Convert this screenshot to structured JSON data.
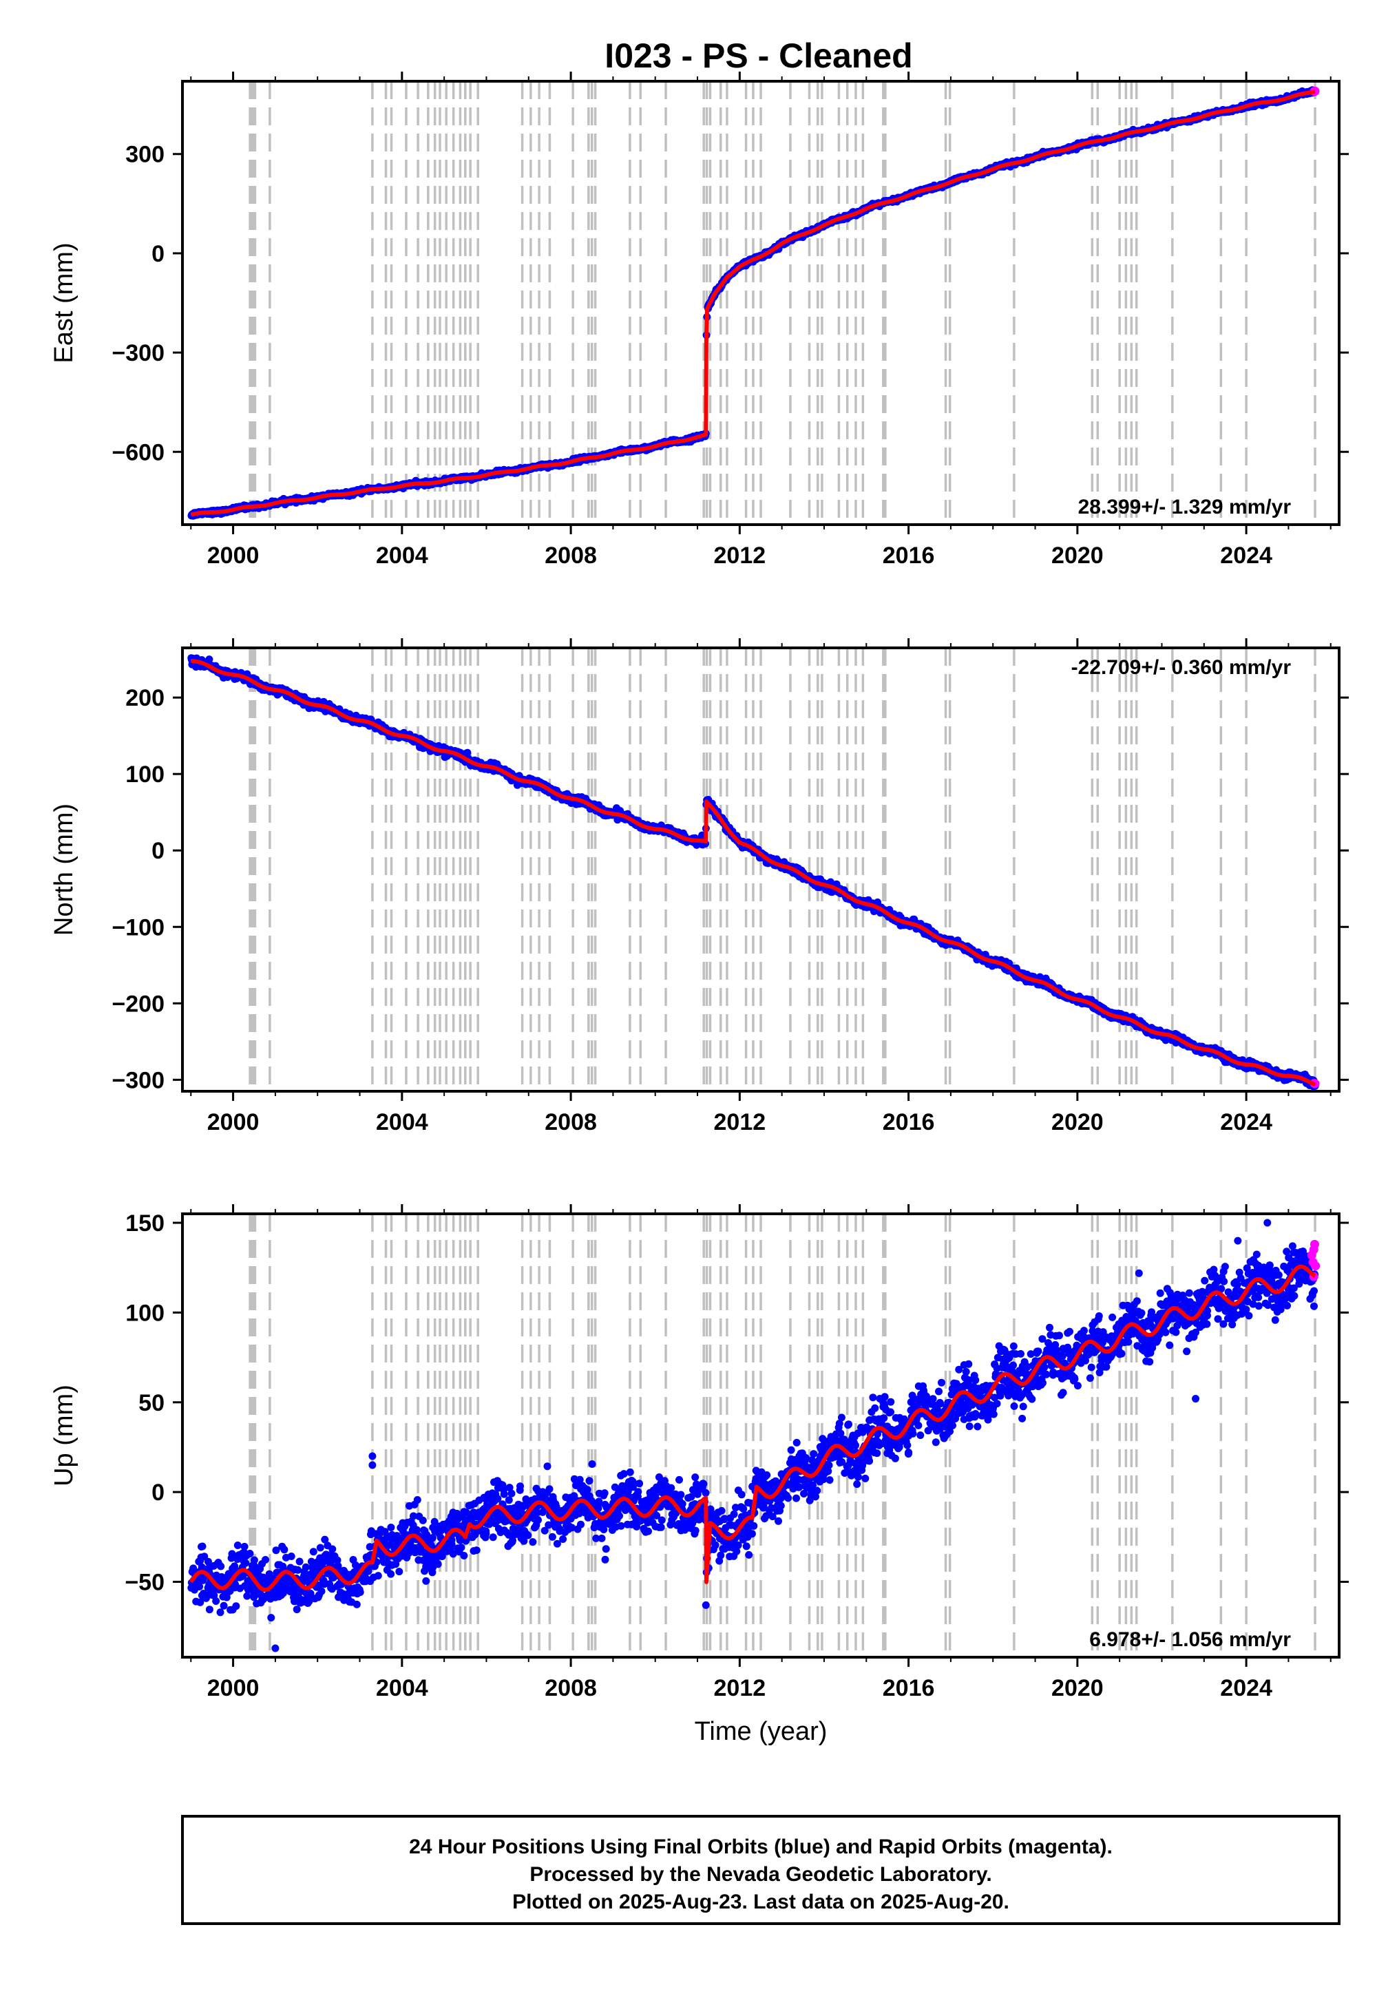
{
  "title": "I023  - PS - Cleaned",
  "caption_lines": [
    "24 Hour Positions Using Final Orbits (blue) and Rapid Orbits (magenta).",
    "Processed by the Nevada Geodetic Laboratory.",
    "Plotted on 2025-Aug-23. Last data on 2025-Aug-20."
  ],
  "colors": {
    "final_orbits": "#0000ff",
    "rapid_orbits": "#ff00ff",
    "model": "#ff0000",
    "event_lines": "#c0c0c0"
  },
  "chart_data": [
    {
      "type": "scatter",
      "name": "East",
      "ylabel": "East (mm)",
      "xlabel": "",
      "xlim": [
        1998.8,
        2026.2
      ],
      "ylim": [
        -820,
        520
      ],
      "x_ticks": [
        2000,
        2004,
        2008,
        2012,
        2016,
        2020,
        2024
      ],
      "y_ticks": [
        -600,
        -300,
        0,
        300
      ],
      "rate_label": "28.399+/- 1.329 mm/yr",
      "rate_position": "bottom-right",
      "rate_mm_per_yr": 28.399,
      "seasonal_amplitude": 2,
      "scatter_noise": 3,
      "model": [
        [
          1999.0,
          -790
        ],
        [
          2000.0,
          -775
        ],
        [
          2001.0,
          -755
        ],
        [
          2002.0,
          -738
        ],
        [
          2003.0,
          -720
        ],
        [
          2004.0,
          -703
        ],
        [
          2005.0,
          -688
        ],
        [
          2006.0,
          -670
        ],
        [
          2007.0,
          -650
        ],
        [
          2008.0,
          -630
        ],
        [
          2009.0,
          -605
        ],
        [
          2010.0,
          -583
        ],
        [
          2011.2,
          -550
        ],
        [
          2011.21,
          -260
        ],
        [
          2011.23,
          -170
        ],
        [
          2011.4,
          -125
        ],
        [
          2011.7,
          -70
        ],
        [
          2012.0,
          -40
        ],
        [
          2012.5,
          -10
        ],
        [
          2013.0,
          30
        ],
        [
          2014.0,
          85
        ],
        [
          2015.0,
          135
        ],
        [
          2016.0,
          175
        ],
        [
          2017.0,
          215
        ],
        [
          2018.0,
          255
        ],
        [
          2019.0,
          290
        ],
        [
          2020.0,
          325
        ],
        [
          2021.0,
          355
        ],
        [
          2022.0,
          385
        ],
        [
          2023.0,
          415
        ],
        [
          2024.0,
          445
        ],
        [
          2025.0,
          470
        ],
        [
          2025.63,
          490
        ]
      ]
    },
    {
      "type": "scatter",
      "name": "North",
      "ylabel": "North (mm)",
      "xlabel": "",
      "xlim": [
        1998.8,
        2026.2
      ],
      "ylim": [
        -315,
        265
      ],
      "x_ticks": [
        2000,
        2004,
        2008,
        2012,
        2016,
        2020,
        2024
      ],
      "y_ticks": [
        -300,
        -200,
        -100,
        0,
        100,
        200
      ],
      "rate_label": "-22.709+/- 0.360 mm/yr",
      "rate_position": "top-right",
      "rate_mm_per_yr": -22.709,
      "seasonal_amplitude": 2,
      "scatter_noise": 2.5,
      "model": [
        [
          1999.0,
          248
        ],
        [
          2000.0,
          230
        ],
        [
          2001.0,
          210
        ],
        [
          2002.0,
          190
        ],
        [
          2003.0,
          170
        ],
        [
          2004.0,
          150
        ],
        [
          2005.0,
          130
        ],
        [
          2006.0,
          110
        ],
        [
          2007.0,
          90
        ],
        [
          2008.0,
          68
        ],
        [
          2009.0,
          48
        ],
        [
          2010.0,
          28
        ],
        [
          2011.2,
          10
        ],
        [
          2011.21,
          62
        ],
        [
          2011.5,
          45
        ],
        [
          2012.0,
          10
        ],
        [
          2013.0,
          -20
        ],
        [
          2014.0,
          -45
        ],
        [
          2015.0,
          -70
        ],
        [
          2016.0,
          -95
        ],
        [
          2017.0,
          -120
        ],
        [
          2018.0,
          -145
        ],
        [
          2019.0,
          -170
        ],
        [
          2020.0,
          -195
        ],
        [
          2021.0,
          -218
        ],
        [
          2022.0,
          -240
        ],
        [
          2023.0,
          -260
        ],
        [
          2024.0,
          -280
        ],
        [
          2025.0,
          -295
        ],
        [
          2025.63,
          -305
        ]
      ]
    },
    {
      "type": "scatter",
      "name": "Up",
      "ylabel": "Up (mm)",
      "xlabel": "Time (year)",
      "xlim": [
        1998.8,
        2026.2
      ],
      "ylim": [
        -92,
        155
      ],
      "x_ticks": [
        2000,
        2004,
        2008,
        2012,
        2016,
        2020,
        2024
      ],
      "y_ticks": [
        -50,
        0,
        50,
        100,
        150
      ],
      "rate_label": "6.978+/- 1.056 mm/yr",
      "rate_position": "bottom-right",
      "rate_mm_per_yr": 6.978,
      "seasonal_amplitude": 5,
      "scatter_noise": 7,
      "model": [
        [
          1999.0,
          -50
        ],
        [
          2000.0,
          -48
        ],
        [
          2001.0,
          -50
        ],
        [
          2002.0,
          -48
        ],
        [
          2003.0,
          -45
        ],
        [
          2003.3,
          -44
        ],
        [
          2003.4,
          -30
        ],
        [
          2004.0,
          -30
        ],
        [
          2005.0,
          -27
        ],
        [
          2005.5,
          -25
        ],
        [
          2005.6,
          -15
        ],
        [
          2006.0,
          -14
        ],
        [
          2007.0,
          -11
        ],
        [
          2008.0,
          -10
        ],
        [
          2009.0,
          -9
        ],
        [
          2010.0,
          -8
        ],
        [
          2011.2,
          -8
        ],
        [
          2011.21,
          -55
        ],
        [
          2011.3,
          -22
        ],
        [
          2012.0,
          -20
        ],
        [
          2012.3,
          -19
        ],
        [
          2012.4,
          0
        ],
        [
          2013.0,
          4
        ],
        [
          2014.0,
          18
        ],
        [
          2015.0,
          28
        ],
        [
          2016.0,
          38
        ],
        [
          2017.0,
          48
        ],
        [
          2018.0,
          58
        ],
        [
          2019.0,
          68
        ],
        [
          2020.0,
          76
        ],
        [
          2021.0,
          86
        ],
        [
          2022.0,
          95
        ],
        [
          2023.0,
          104
        ],
        [
          2024.0,
          112
        ],
        [
          2025.0,
          118
        ],
        [
          2025.63,
          124
        ]
      ],
      "outliers": [
        [
          2003.3,
          20
        ],
        [
          2003.3,
          15
        ],
        [
          2001.0,
          -87
        ],
        [
          2000.9,
          -70
        ],
        [
          2022.8,
          52
        ],
        [
          2024.5,
          150
        ],
        [
          2023.8,
          140
        ],
        [
          2011.2,
          -63
        ]
      ],
      "rapid_points": [
        [
          2025.55,
          132
        ],
        [
          2025.58,
          128
        ],
        [
          2025.6,
          135
        ],
        [
          2025.62,
          138
        ],
        [
          2025.64,
          126
        ],
        [
          2025.6,
          120
        ]
      ]
    }
  ],
  "event_lines": [
    2000.4,
    2000.44,
    2000.48,
    2000.52,
    2000.87,
    2003.3,
    2003.62,
    2003.75,
    2004.1,
    2004.38,
    2004.62,
    2004.78,
    2004.9,
    2005.05,
    2005.22,
    2005.38,
    2005.5,
    2005.62,
    2005.8,
    2006.85,
    2007.05,
    2007.25,
    2007.5,
    2008.05,
    2008.42,
    2008.5,
    2008.58,
    2009.4,
    2009.65,
    2010.25,
    2011.15,
    2011.22,
    2011.3,
    2011.55,
    2011.7,
    2012.15,
    2012.32,
    2012.5,
    2013.2,
    2013.65,
    2013.85,
    2013.95,
    2014.35,
    2014.55,
    2014.75,
    2014.92,
    2015.4,
    2015.45,
    2016.88,
    2016.98,
    2018.5,
    2020.35,
    2020.48,
    2021.0,
    2021.15,
    2021.28,
    2021.4,
    2022.25,
    2023.4,
    2024.0,
    2025.63
  ]
}
